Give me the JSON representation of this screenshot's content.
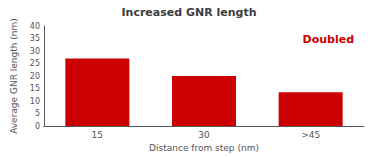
{
  "chart_data": {
    "type": "bar",
    "title": "Increased GNR length",
    "categories": [
      "15",
      "30",
      ">45"
    ],
    "values": [
      27,
      20,
      13.5
    ],
    "color": "#cc0000",
    "xlabel": "Distance from step (nm)",
    "ylabel": "Average GNR length (nm)",
    "ylim": [
      0,
      40
    ],
    "yticks": [
      0,
      5,
      10,
      15,
      20,
      25,
      30,
      35,
      40
    ],
    "annotation": "Doubled",
    "grid": false
  }
}
